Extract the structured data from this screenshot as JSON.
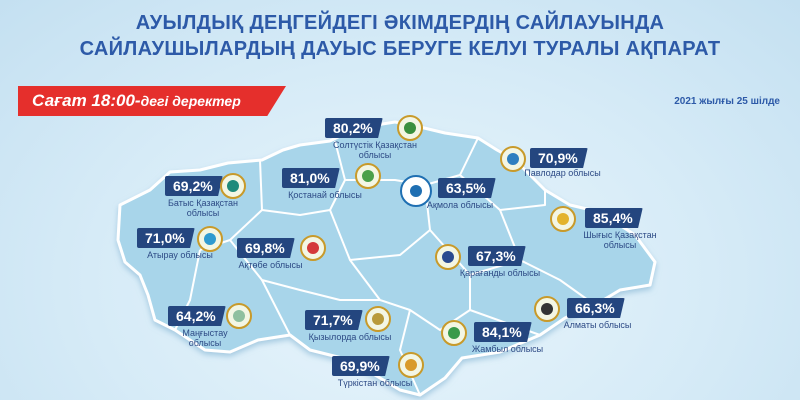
{
  "header": {
    "title_line1": "АУЫЛДЫҚ ДЕҢГЕЙДЕГІ ӘКІМДЕРДІҢ САЙЛАУЫНДА",
    "title_line2": "САЙЛАУШЫЛАРДЫҢ ДАУЫС БЕРУГЕ КЕЛУІ ТУРАЛЫ АҚПАРАТ"
  },
  "banner": {
    "time": "Сағат 18:00-",
    "suffix": "дегі деректер"
  },
  "date": "2021 жылғы 25 шілде",
  "regions": [
    {
      "key": "north-kazakhstan",
      "value": "80,2%",
      "name": "Солтүстік Қазақстан облысы",
      "emblem_color": "#3a8f3e"
    },
    {
      "key": "kostanay",
      "value": "81,0%",
      "name": "Қостанай облысы",
      "emblem_color": "#4b9f4a"
    },
    {
      "key": "akmola",
      "value": "63,5%",
      "name": "Ақмола облысы",
      "emblem_text": "AKMOLA",
      "emblem_color": "#1f6fb2"
    },
    {
      "key": "pavlodar",
      "value": "70,9%",
      "name": "Павлодар облысы",
      "emblem_color": "#2f7fc0"
    },
    {
      "key": "west-kazakhstan",
      "value": "69,2%",
      "name": "Батыс Қазақстан облысы",
      "emblem_color": "#1f8a7a"
    },
    {
      "key": "east-kazakhstan",
      "value": "85,4%",
      "name": "Шығыс Қазақстан облысы",
      "emblem_color": "#e3b32c"
    },
    {
      "key": "atyrau",
      "value": "71,0%",
      "name": "Атырау облысы",
      "emblem_color": "#2f9ad0"
    },
    {
      "key": "aktobe",
      "value": "69,8%",
      "name": "Ақтөбе облысы",
      "emblem_color": "#d43a3a"
    },
    {
      "key": "karaganda",
      "value": "67,3%",
      "name": "Қарағанды облысы",
      "emblem_color": "#2a4a8f"
    },
    {
      "key": "mangystau",
      "value": "64,2%",
      "name": "Маңғыстау облысы",
      "emblem_color": "#8fbf9f"
    },
    {
      "key": "kyzylorda",
      "value": "71,7%",
      "name": "Қызылорда облысы",
      "emblem_color": "#b99a3a"
    },
    {
      "key": "almaty",
      "value": "66,3%",
      "name": "Алматы облысы",
      "emblem_color": "#333333"
    },
    {
      "key": "zhambyl",
      "value": "84,1%",
      "name": "Жамбыл облысы",
      "emblem_color": "#3a9a4a"
    },
    {
      "key": "turkistan",
      "value": "69,9%",
      "name": "Түркістан облысы",
      "emblem_color": "#d99a2a"
    }
  ]
}
